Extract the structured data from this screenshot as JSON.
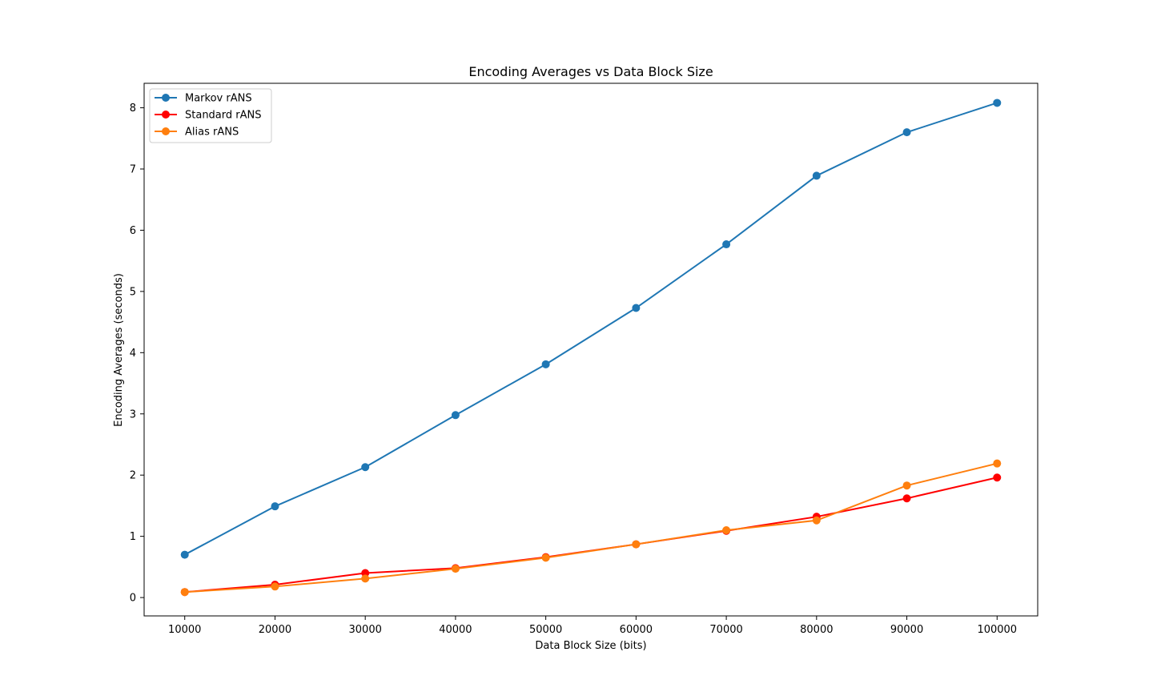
{
  "chart_data": {
    "type": "line",
    "title": "Encoding Averages vs Data Block Size",
    "xlabel": "Data Block Size (bits)",
    "ylabel": "Encoding Averages (seconds)",
    "x": [
      10000,
      20000,
      30000,
      40000,
      50000,
      60000,
      70000,
      80000,
      90000,
      100000
    ],
    "xlim": [
      5500,
      104500
    ],
    "ylim": [
      -0.3,
      8.4
    ],
    "xticks": [
      10000,
      20000,
      30000,
      40000,
      50000,
      60000,
      70000,
      80000,
      90000,
      100000
    ],
    "yticks": [
      0,
      1,
      2,
      3,
      4,
      5,
      6,
      7,
      8
    ],
    "grid": false,
    "legend_position": "top-left",
    "series": [
      {
        "name": "Markov rANS",
        "color": "#1f77b4",
        "marker": "circle",
        "values": [
          0.7,
          1.49,
          2.13,
          2.98,
          3.81,
          4.73,
          5.77,
          6.89,
          7.6,
          8.08
        ]
      },
      {
        "name": "Standard rANS",
        "color": "#ff0000",
        "marker": "circle",
        "values": [
          0.09,
          0.21,
          0.4,
          0.48,
          0.66,
          0.87,
          1.09,
          1.32,
          1.62,
          1.96
        ]
      },
      {
        "name": "Alias rANS",
        "color": "#ff7f0e",
        "marker": "circle",
        "values": [
          0.09,
          0.18,
          0.31,
          0.47,
          0.65,
          0.87,
          1.1,
          1.26,
          1.83,
          2.19
        ]
      }
    ]
  }
}
